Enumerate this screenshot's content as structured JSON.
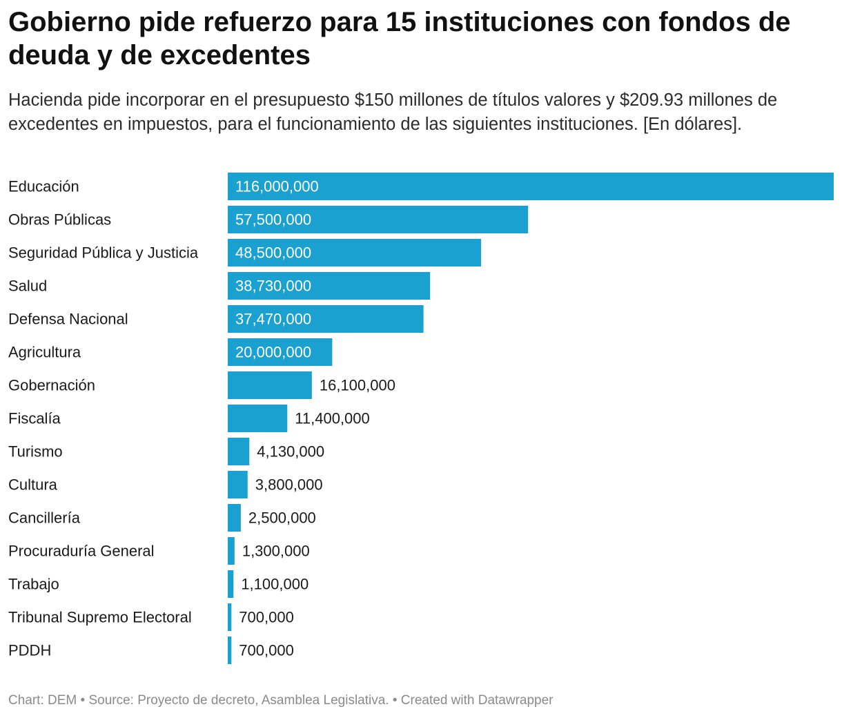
{
  "header": {
    "title": "Gobierno pide refuerzo para 15 instituciones con fondos de deuda y de excedentes",
    "subtitle": "Hacienda pide incorporar en el presupuesto $150 millones de títulos valores y $209.93 millones de excedentes en impuestos, para el funcionamiento de las siguientes instituciones. [En dólares]."
  },
  "footer": {
    "text": "Chart: DEM • Source: Proyecto de decreto, Asamblea Legislativa. • Created with Datawrapper"
  },
  "chart_data": {
    "type": "bar",
    "orientation": "horizontal",
    "bar_color": "#1ba1cf",
    "categories": [
      "Educación",
      "Obras Públicas",
      "Seguridad Pública y Justicia",
      "Salud",
      "Defensa Nacional",
      "Agricultura",
      "Gobernación",
      "Fiscalía",
      "Turismo",
      "Cultura",
      "Cancillería",
      "Procuraduría General",
      "Trabajo",
      "Tribunal Supremo Electoral",
      "PDDH"
    ],
    "values": [
      116000000,
      57500000,
      48500000,
      38730000,
      37470000,
      20000000,
      16100000,
      11400000,
      4130000,
      3800000,
      2500000,
      1300000,
      1100000,
      700000,
      700000
    ],
    "labels": [
      "116,000,000",
      "57,500,000",
      "48,500,000",
      "38,730,000",
      "37,470,000",
      "20,000,000",
      "16,100,000",
      "11,400,000",
      "4,130,000",
      "3,800,000",
      "2,500,000",
      "1,300,000",
      "1,100,000",
      "700,000",
      "700,000"
    ],
    "xlim": [
      0,
      116000000
    ],
    "grid": false,
    "legend": "none"
  }
}
